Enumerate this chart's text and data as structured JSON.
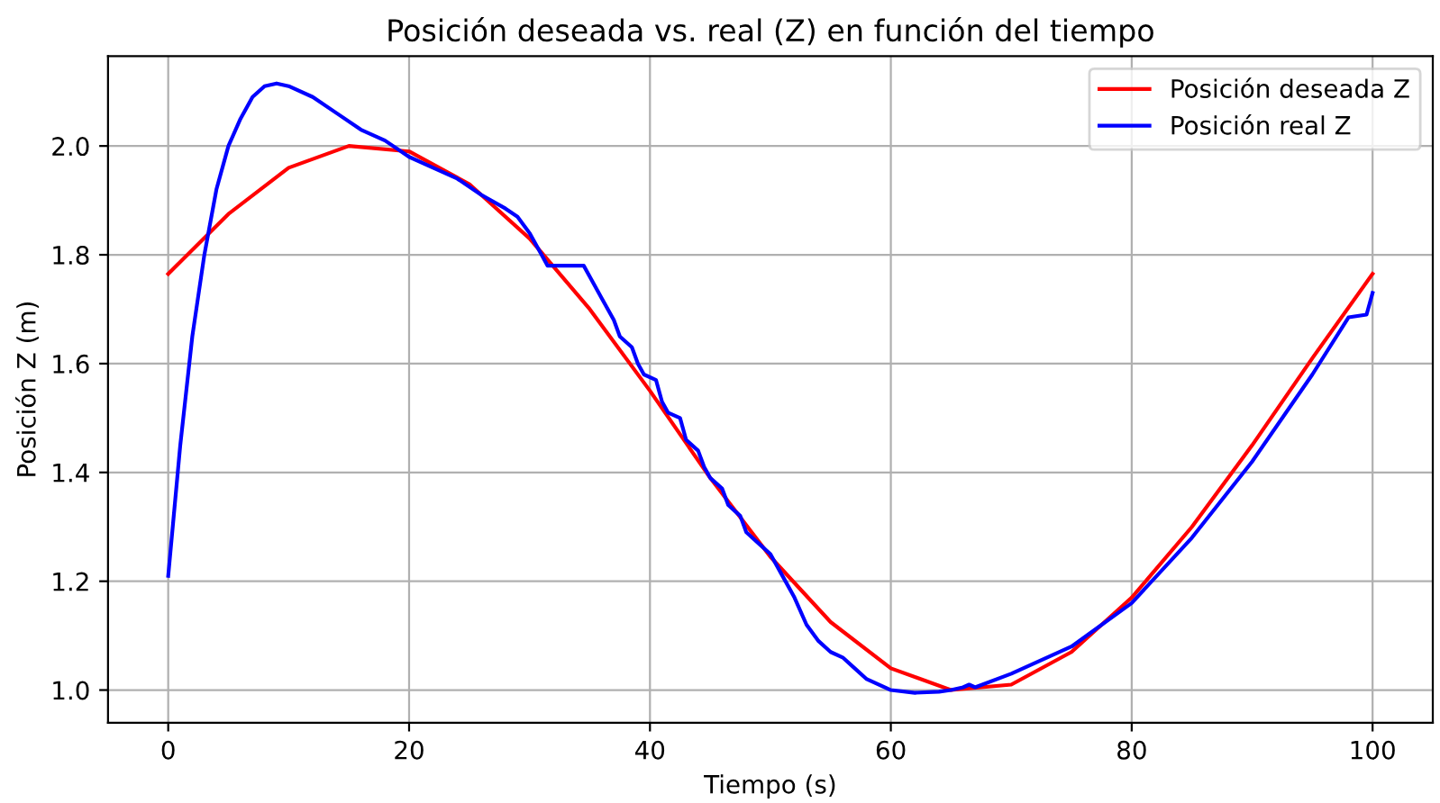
{
  "chart_data": {
    "type": "line",
    "title": "Posición deseada vs. real (Z) en función del tiempo",
    "xlabel": "Tiempo (s)",
    "ylabel": "Posición Z (m)",
    "xlim": [
      -5,
      105
    ],
    "ylim": [
      0.94,
      2.165
    ],
    "xticks": [
      0,
      20,
      40,
      60,
      80,
      100
    ],
    "yticks": [
      {
        "value": 1.0,
        "label": "1.0"
      },
      {
        "value": 1.2,
        "label": "1.2"
      },
      {
        "value": 1.4,
        "label": "1.4"
      },
      {
        "value": 1.6,
        "label": "1.6"
      },
      {
        "value": 1.8,
        "label": "1.8"
      },
      {
        "value": 2.0,
        "label": "2.0"
      }
    ],
    "grid": true,
    "legend": "top right",
    "marker": "none",
    "line_style": "solid",
    "series": [
      {
        "name": "Posición deseada Z",
        "color": "#ff0000",
        "x": [
          0,
          5,
          10,
          15,
          20,
          25,
          30,
          35,
          40,
          45,
          50,
          55,
          60,
          65,
          70,
          75,
          80,
          85,
          90,
          95,
          100
        ],
        "values": [
          1.765,
          1.875,
          1.96,
          2.0,
          1.99,
          1.93,
          1.83,
          1.7,
          1.55,
          1.39,
          1.245,
          1.125,
          1.04,
          1.0,
          1.01,
          1.07,
          1.17,
          1.3,
          1.45,
          1.61,
          1.765
        ]
      },
      {
        "name": "Posición real Z",
        "color": "#0000ff",
        "x": [
          0,
          1,
          2,
          3,
          4,
          5,
          6,
          7,
          8,
          9,
          10,
          12,
          14,
          16,
          18,
          20,
          22,
          24,
          26,
          28,
          29,
          30,
          31,
          31.5,
          34.5,
          35,
          36,
          37,
          37.5,
          38.5,
          39,
          39.5,
          40.5,
          41,
          41.5,
          42.5,
          43,
          44,
          44.5,
          45,
          46,
          46.5,
          47.5,
          48,
          49,
          50,
          51,
          52,
          53,
          54,
          55,
          56,
          57,
          58,
          60,
          62,
          64,
          65,
          66,
          66.5,
          67,
          70,
          75,
          80,
          85,
          90,
          95,
          98,
          99.5,
          100
        ],
        "values": [
          1.21,
          1.45,
          1.65,
          1.8,
          1.92,
          2.0,
          2.05,
          2.09,
          2.11,
          2.115,
          2.11,
          2.09,
          2.06,
          2.03,
          2.01,
          1.98,
          1.96,
          1.94,
          1.91,
          1.885,
          1.87,
          1.84,
          1.8,
          1.78,
          1.78,
          1.76,
          1.72,
          1.68,
          1.65,
          1.63,
          1.6,
          1.58,
          1.57,
          1.53,
          1.51,
          1.5,
          1.46,
          1.44,
          1.41,
          1.39,
          1.37,
          1.34,
          1.32,
          1.29,
          1.27,
          1.25,
          1.21,
          1.17,
          1.12,
          1.09,
          1.07,
          1.06,
          1.04,
          1.02,
          1.0,
          0.995,
          0.997,
          1.0,
          1.005,
          1.01,
          1.005,
          1.03,
          1.08,
          1.16,
          1.28,
          1.42,
          1.58,
          1.685,
          1.69,
          1.73
        ]
      }
    ]
  }
}
